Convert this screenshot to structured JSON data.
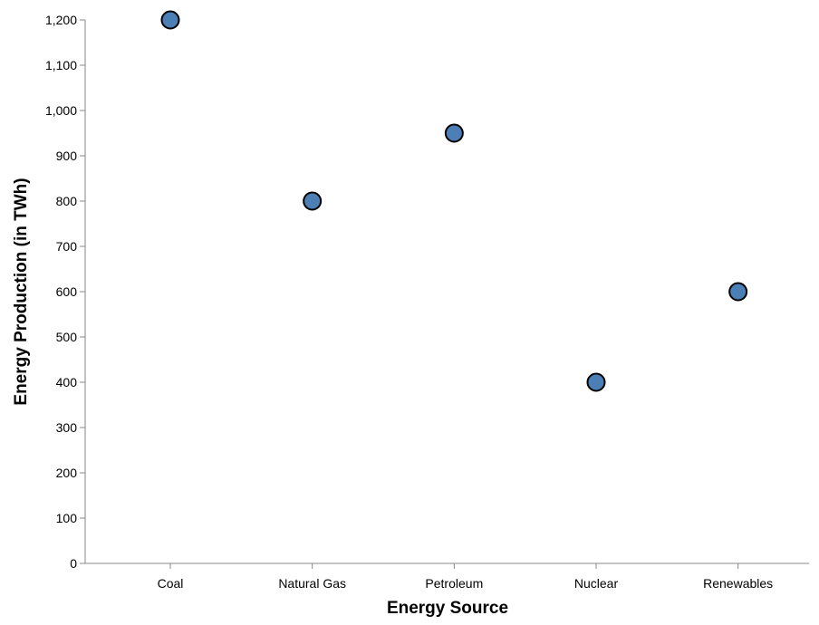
{
  "chart_data": {
    "type": "scatter",
    "title": "",
    "xlabel": "Energy Source",
    "ylabel": "Energy Production (in TWh)",
    "categories": [
      "Coal",
      "Natural Gas",
      "Petroleum",
      "Nuclear",
      "Renewables"
    ],
    "values": [
      1200,
      800,
      950,
      400,
      600
    ],
    "ylim": [
      0,
      1200
    ],
    "yticks": [
      "0",
      "100",
      "200",
      "300",
      "400",
      "500",
      "600",
      "700",
      "800",
      "900",
      "1,000",
      "1,100",
      "1,200"
    ],
    "ytick_values": [
      0,
      100,
      200,
      300,
      400,
      500,
      600,
      700,
      800,
      900,
      1000,
      1100,
      1200
    ],
    "grid": false,
    "legend": "none",
    "point_color": "#4c7fb6",
    "point_stroke": "#000000",
    "axis_color": "#888888"
  }
}
